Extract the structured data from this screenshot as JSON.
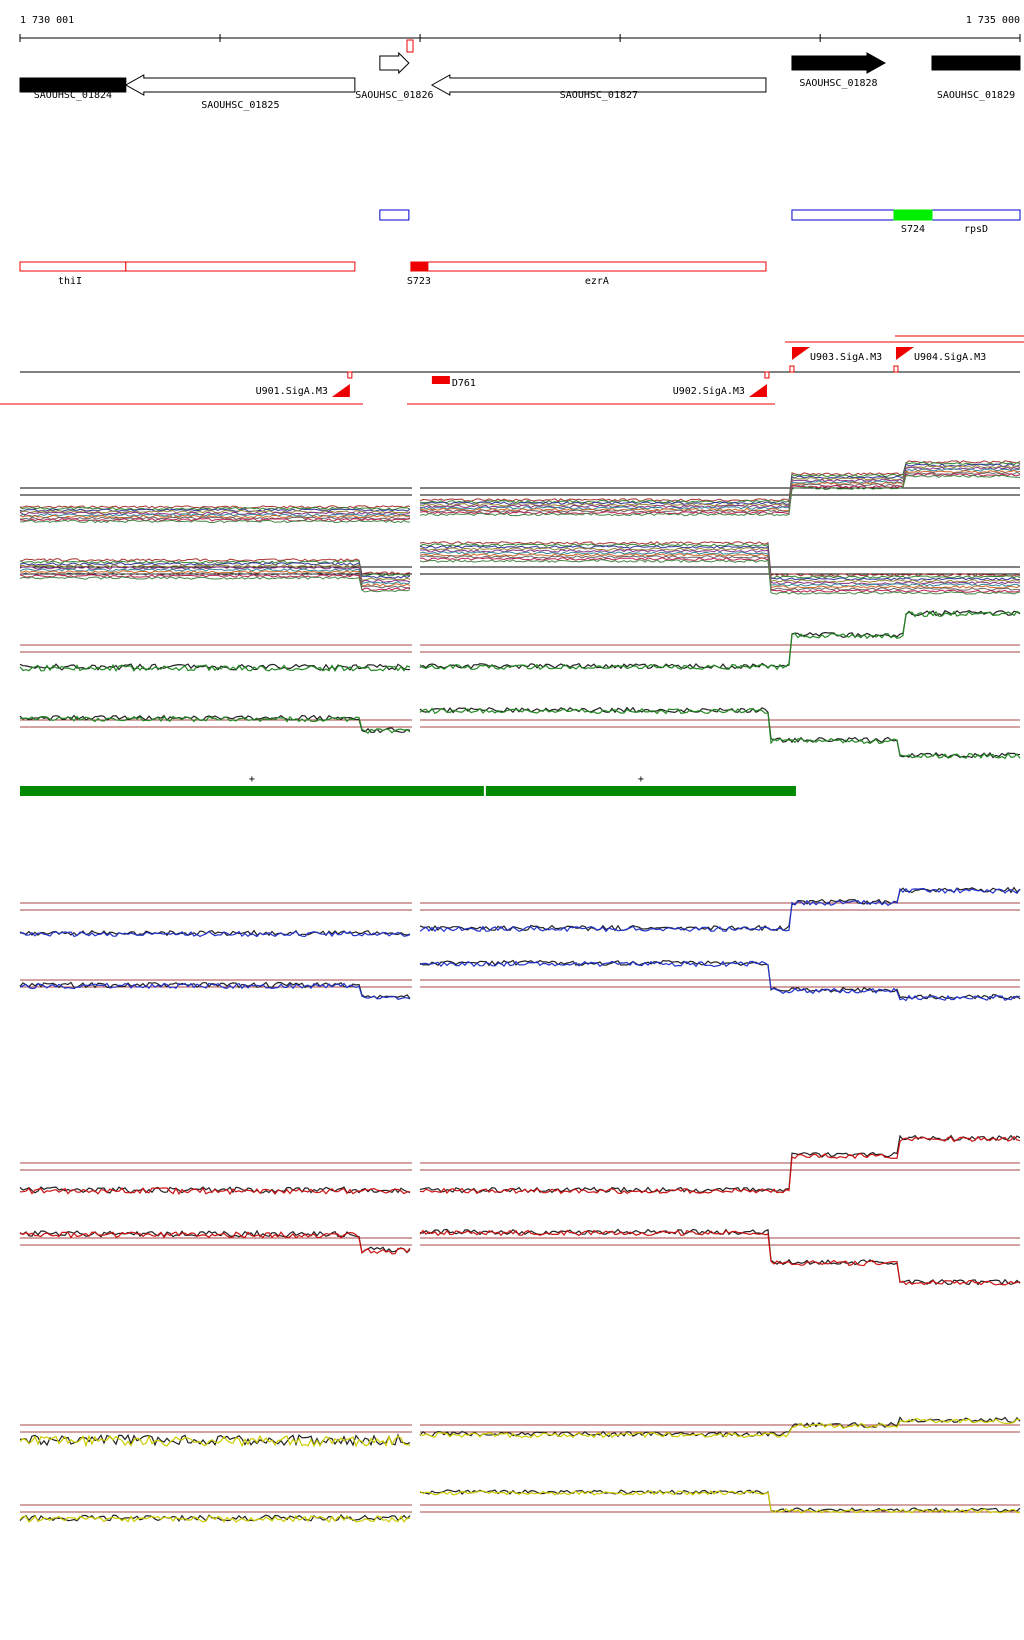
{
  "ruler": {
    "start_label": "1 730 001",
    "end_label": "1 735 000",
    "start_bp": 1730001,
    "end_bp": 1735000,
    "major_tick_bp": 1000
  },
  "genes": [
    {
      "name": "SAOUHSC_01824",
      "start": 1730001,
      "end": 1730530,
      "strand": "-",
      "fill": "#000000"
    },
    {
      "name": "SAOUHSC_01825",
      "start": 1730530,
      "end": 1731675,
      "strand": "-",
      "fill": "#ffffff"
    },
    {
      "name": "SAOUHSC_01826",
      "start": 1731800,
      "end": 1731945,
      "strand": "+",
      "fill": "#ffffff"
    },
    {
      "name": "SAOUHSC_01827",
      "start": 1732060,
      "end": 1733730,
      "strand": "-",
      "fill": "#ffffff"
    },
    {
      "name": "SAOUHSC_01828",
      "start": 1733860,
      "end": 1734325,
      "strand": "+",
      "fill": "#000000"
    },
    {
      "name": "SAOUHSC_01829",
      "start": 1734560,
      "end": 1735000,
      "strand": "+",
      "fill": "#000000"
    }
  ],
  "blue_features": [
    {
      "name": "",
      "start": 1731800,
      "end": 1731945
    },
    {
      "name": "",
      "start": 1733860,
      "end": 1734470
    },
    {
      "name": "rpsD",
      "start": 1734560,
      "end": 1735000
    }
  ],
  "green_features": [
    {
      "name": "S724",
      "start": 1734370,
      "end": 1734560
    }
  ],
  "red_features": [
    {
      "name": "thiI",
      "start": 1730001,
      "end": 1730530,
      "filled": false
    },
    {
      "name": "",
      "start": 1730530,
      "end": 1731675,
      "filled": false
    },
    {
      "name": "S723",
      "start": 1731955,
      "end": 1732040,
      "filled": true
    },
    {
      "name": "ezrA",
      "start": 1732040,
      "end": 1733730,
      "filled": false
    }
  ],
  "promoters": [
    {
      "name": "U901.SigA.M3",
      "pos": 1731650,
      "strand": "-"
    },
    {
      "name": "U902.SigA.M3",
      "pos": 1733735,
      "strand": "-"
    },
    {
      "name": "U903.SigA.M3",
      "pos": 1733860,
      "strand": "+"
    },
    {
      "name": "U904.SigA.M3",
      "pos": 1734380,
      "strand": "+"
    }
  ],
  "other_elements": [
    {
      "name": "D761",
      "start": 1732060,
      "end": 1732150
    }
  ],
  "plus_markers": [
    {
      "label": "+",
      "start": 1730001,
      "end": 1732320
    },
    {
      "label": "+",
      "start": 1732330,
      "end": 1733880
    }
  ],
  "colors": {
    "gene_black": "#000000",
    "blue_feature": "#0000cc",
    "green_feature": "#00ee00",
    "red_feature": "#ee0000",
    "coverage_bar": "#008800",
    "threshold_line": "#aa4444",
    "series_green": "#228822",
    "series_blue": "#2233cc",
    "series_red": "#cc1111",
    "series_yellow": "#cccc00"
  }
}
